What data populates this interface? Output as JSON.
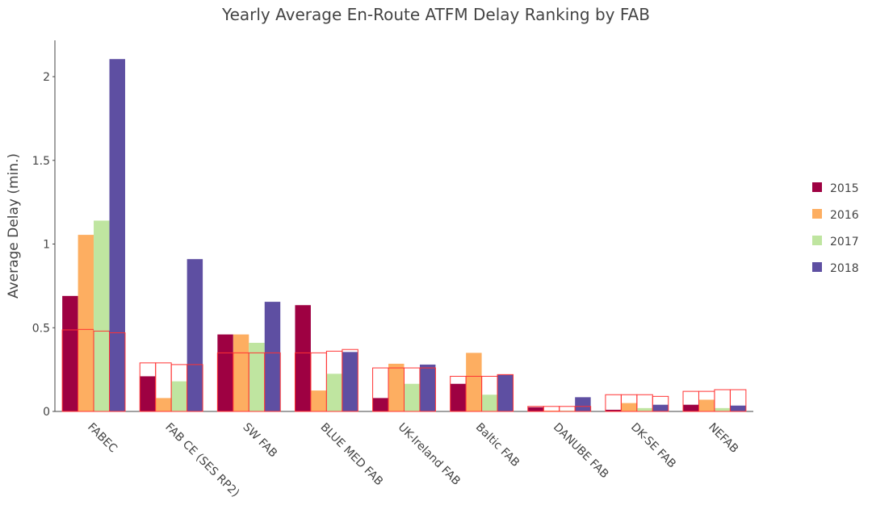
{
  "chart_data": {
    "type": "bar",
    "title": "Yearly Average En-Route ATFM Delay Ranking by FAB",
    "y_label": "Average Delay (min.)",
    "categories": [
      "FABEC",
      "FAB CE (SES RP2)",
      "SW FAB",
      "BLUE MED FAB",
      "UK-Ireland FAB",
      "Baltic FAB",
      "DANUBE FAB",
      "DK-SE FAB",
      "NEFAB"
    ],
    "series": [
      {
        "name": "2015",
        "color": "#9e0142",
        "values": [
          0.69,
          0.21,
          0.46,
          0.635,
          0.08,
          0.165,
          0.025,
          0.01,
          0.04
        ],
        "target_values": [
          0.487,
          0.29,
          0.35,
          0.35,
          0.26,
          0.21,
          0.03,
          0.1,
          0.12
        ]
      },
      {
        "name": "2016",
        "color": "#fdae61",
        "values": [
          1.055,
          0.08,
          0.46,
          0.125,
          0.285,
          0.35,
          0.005,
          0.05,
          0.07
        ],
        "target_values": [
          0.49,
          0.29,
          0.35,
          0.35,
          0.26,
          0.21,
          0.03,
          0.1,
          0.12
        ]
      },
      {
        "name": "2017",
        "color": "#bfe5a0",
        "values": [
          1.14,
          0.18,
          0.41,
          0.225,
          0.165,
          0.1,
          0.005,
          0.02,
          0.02
        ],
        "target_values": [
          0.48,
          0.28,
          0.35,
          0.36,
          0.26,
          0.21,
          0.03,
          0.1,
          0.13
        ]
      },
      {
        "name": "2018",
        "color": "#5e4fa2",
        "values": [
          2.105,
          0.91,
          0.655,
          0.355,
          0.28,
          0.22,
          0.085,
          0.04,
          0.035
        ],
        "target_values": [
          0.47,
          0.28,
          0.35,
          0.37,
          0.26,
          0.22,
          0.03,
          0.09,
          0.13
        ]
      }
    ],
    "target_color": "#ff3333",
    "ylim": [
      0,
      2.217
    ],
    "yticks": [
      0,
      0.5,
      1,
      1.5,
      2
    ],
    "grid": false
  }
}
